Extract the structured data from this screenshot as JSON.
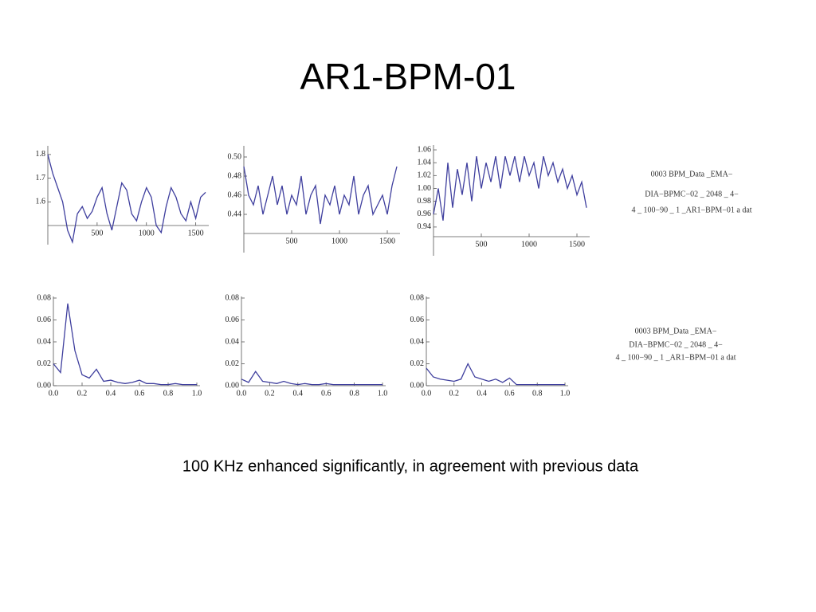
{
  "title": "AR1-BPM-01",
  "caption": "100 KHz enhanced significantly, in agreement with previous data",
  "file_labels": [
    [
      "0003 BPM_Data _EMA−",
      "DIA−BPMC−02 _ 2048 _ 4−",
      "4 _ 100−90 _ 1 _AR1−BPM−01 a dat"
    ],
    [
      "0003 BPM_Data _EMA−",
      "DIA−BPMC−02 _ 2048 _ 4−",
      "4 _ 100−90 _ 1 _AR1−BPM−01 a dat"
    ]
  ],
  "chart_data": [
    {
      "type": "line",
      "color": "#3f3f9e",
      "x": [
        0,
        50,
        100,
        150,
        200,
        250,
        300,
        350,
        400,
        450,
        500,
        550,
        600,
        650,
        700,
        750,
        800,
        850,
        900,
        950,
        1000,
        1050,
        1100,
        1150,
        1200,
        1250,
        1300,
        1350,
        1400,
        1450,
        1500,
        1550,
        1600
      ],
      "values": [
        1.8,
        1.72,
        1.66,
        1.6,
        1.48,
        1.43,
        1.55,
        1.58,
        1.53,
        1.56,
        1.62,
        1.66,
        1.55,
        1.48,
        1.58,
        1.68,
        1.65,
        1.55,
        1.52,
        1.6,
        1.66,
        1.62,
        1.5,
        1.47,
        1.58,
        1.66,
        1.62,
        1.55,
        1.52,
        1.6,
        1.53,
        1.62,
        1.64
      ],
      "xlim": [
        0,
        1600
      ],
      "ylim": [
        1.5,
        1.83
      ],
      "xticks": [
        500,
        1000,
        1500
      ],
      "yticks": [
        1.6,
        1.7,
        1.8
      ]
    },
    {
      "type": "line",
      "color": "#3f3f9e",
      "x": [
        0,
        50,
        100,
        150,
        200,
        250,
        300,
        350,
        400,
        450,
        500,
        550,
        600,
        650,
        700,
        750,
        800,
        850,
        900,
        950,
        1000,
        1050,
        1100,
        1150,
        1200,
        1250,
        1300,
        1350,
        1400,
        1450,
        1500,
        1550,
        1600
      ],
      "values": [
        0.49,
        0.46,
        0.45,
        0.47,
        0.44,
        0.46,
        0.48,
        0.45,
        0.47,
        0.44,
        0.46,
        0.45,
        0.48,
        0.44,
        0.46,
        0.47,
        0.43,
        0.46,
        0.45,
        0.47,
        0.44,
        0.46,
        0.45,
        0.48,
        0.44,
        0.46,
        0.47,
        0.44,
        0.45,
        0.46,
        0.44,
        0.47,
        0.49
      ],
      "xlim": [
        0,
        1600
      ],
      "ylim": [
        0.42,
        0.51
      ],
      "xticks": [
        500,
        1000,
        1500
      ],
      "yticks": [
        0.44,
        0.46,
        0.48,
        {
          "value": 0.5,
          "label": "0.50"
        }
      ]
    },
    {
      "type": "line",
      "color": "#3f3f9e",
      "x": [
        0,
        50,
        100,
        150,
        200,
        250,
        300,
        350,
        400,
        450,
        500,
        550,
        600,
        650,
        700,
        750,
        800,
        850,
        900,
        950,
        1000,
        1050,
        1100,
        1150,
        1200,
        1250,
        1300,
        1350,
        1400,
        1450,
        1500,
        1550,
        1600
      ],
      "values": [
        0.96,
        1.0,
        0.95,
        1.04,
        0.97,
        1.03,
        0.99,
        1.04,
        0.98,
        1.05,
        1.0,
        1.04,
        1.01,
        1.05,
        1.0,
        1.05,
        1.02,
        1.05,
        1.01,
        1.05,
        1.02,
        1.04,
        1.0,
        1.05,
        1.02,
        1.04,
        1.01,
        1.03,
        1.0,
        1.02,
        0.99,
        1.01,
        0.97
      ],
      "xlim": [
        0,
        1600
      ],
      "ylim": [
        0.925,
        1.065
      ],
      "xticks": [
        500,
        1000,
        1500
      ],
      "yticks": [
        0.94,
        0.96,
        0.98,
        {
          "value": 1,
          "label": "1.00"
        },
        1.02,
        1.04,
        1.06
      ]
    },
    {
      "type": "line",
      "color": "#3f3f9e",
      "x": [
        0,
        0.05,
        0.1,
        0.15,
        0.2,
        0.25,
        0.3,
        0.35,
        0.4,
        0.45,
        0.5,
        0.55,
        0.6,
        0.65,
        0.7,
        0.75,
        0.8,
        0.85,
        0.9,
        0.95,
        1
      ],
      "values": [
        0.02,
        0.012,
        0.075,
        0.032,
        0.01,
        0.007,
        0.015,
        0.004,
        0.005,
        0.003,
        0.002,
        0.003,
        0.005,
        0.002,
        0.002,
        0.001,
        0.001,
        0.002,
        0.001,
        0.001,
        0.001
      ],
      "xlim": [
        0,
        1
      ],
      "ylim": [
        0,
        0.08
      ],
      "xticks": [
        {
          "value": 0,
          "label": "0.0"
        },
        0.2,
        0.4,
        0.6,
        0.8,
        {
          "value": 1,
          "label": "1.0"
        }
      ],
      "yticks": [
        {
          "value": 0,
          "label": "0.00"
        },
        0.02,
        0.04,
        0.06,
        0.08
      ]
    },
    {
      "type": "line",
      "color": "#3f3f9e",
      "x": [
        0,
        0.05,
        0.1,
        0.15,
        0.2,
        0.25,
        0.3,
        0.35,
        0.4,
        0.45,
        0.5,
        0.55,
        0.6,
        0.65,
        0.7,
        0.75,
        0.8,
        0.85,
        0.9,
        0.95,
        1
      ],
      "values": [
        0.006,
        0.003,
        0.013,
        0.004,
        0.003,
        0.002,
        0.004,
        0.002,
        0.001,
        0.002,
        0.001,
        0.001,
        0.002,
        0.001,
        0.001,
        0.001,
        0.001,
        0.001,
        0.001,
        0.001,
        0.001
      ],
      "xlim": [
        0,
        1
      ],
      "ylim": [
        0,
        0.08
      ],
      "xticks": [
        {
          "value": 0,
          "label": "0.0"
        },
        0.2,
        0.4,
        0.6,
        0.8,
        {
          "value": 1,
          "label": "1.0"
        }
      ],
      "yticks": [
        {
          "value": 0,
          "label": "0.00"
        },
        0.02,
        0.04,
        0.06,
        0.08
      ]
    },
    {
      "type": "line",
      "color": "#3f3f9e",
      "x": [
        0,
        0.05,
        0.1,
        0.15,
        0.2,
        0.25,
        0.3,
        0.35,
        0.4,
        0.45,
        0.5,
        0.55,
        0.6,
        0.65,
        0.7,
        0.75,
        0.8,
        0.85,
        0.9,
        0.95,
        1
      ],
      "values": [
        0.016,
        0.008,
        0.006,
        0.005,
        0.004,
        0.006,
        0.02,
        0.008,
        0.006,
        0.004,
        0.006,
        0.003,
        0.007,
        0.001,
        0.001,
        0.001,
        0.001,
        0.001,
        0.001,
        0.001,
        0.001
      ],
      "xlim": [
        0,
        1
      ],
      "ylim": [
        0,
        0.08
      ],
      "xticks": [
        {
          "value": 0,
          "label": "0.0"
        },
        0.2,
        0.4,
        0.6,
        0.8,
        {
          "value": 1,
          "label": "1.0"
        }
      ],
      "yticks": [
        {
          "value": 0,
          "label": "0.00"
        },
        0.02,
        0.04,
        0.06,
        0.08
      ]
    }
  ]
}
